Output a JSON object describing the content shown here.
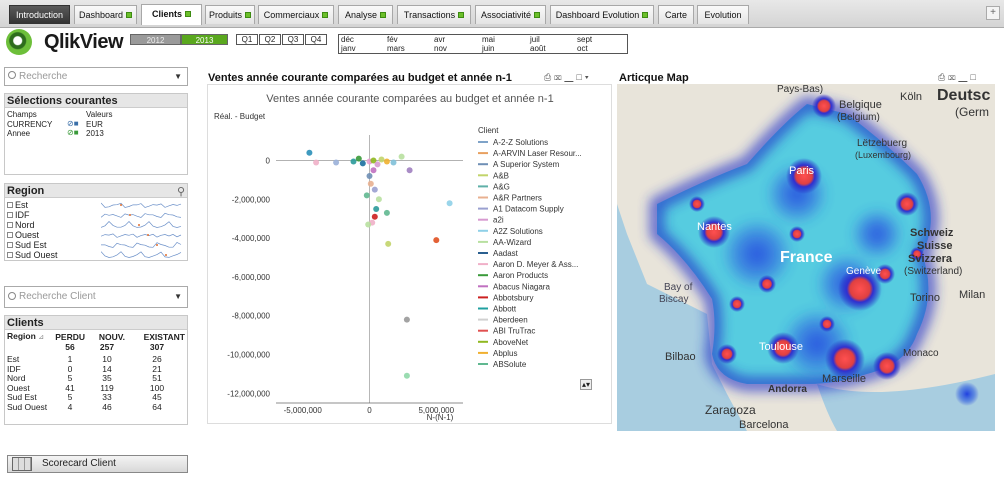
{
  "tabs": [
    {
      "label": "Introduction",
      "state": "dark"
    },
    {
      "label": "Dashboard",
      "tick": true
    },
    {
      "label": "Clients",
      "tick": true,
      "state": "active"
    },
    {
      "label": "Produits",
      "tick": true
    },
    {
      "label": "Commerciaux",
      "tick": true
    },
    {
      "label": "Analyse",
      "tick": true
    },
    {
      "label": "Transactions",
      "tick": true
    },
    {
      "label": "Associativité",
      "tick": true
    },
    {
      "label": "Dashboard Evolution",
      "tick": true
    },
    {
      "label": "Carte"
    },
    {
      "label": "Evolution"
    }
  ],
  "tab_add": "+",
  "logo": {
    "name": "QlikView"
  },
  "years": [
    {
      "label": "2012",
      "selected": false
    },
    {
      "label": "2013",
      "selected": true
    }
  ],
  "quarters": [
    "Q1",
    "Q2",
    "Q3",
    "Q4"
  ],
  "months": [
    [
      "déc",
      "janv"
    ],
    [
      "fév",
      "mars"
    ],
    [
      "avr",
      "nov"
    ],
    [
      "mai",
      "juin"
    ],
    [
      "juil",
      "août"
    ],
    [
      "sept",
      "oct"
    ]
  ],
  "search": {
    "placeholder": "Recherche"
  },
  "selections": {
    "title": "Sélections courantes",
    "col_field": "Champs",
    "col_value": "Valeurs",
    "rows": [
      {
        "field": "CURRENCY",
        "value": "EUR"
      },
      {
        "field": "Annee",
        "value": "2013"
      }
    ]
  },
  "region_box": {
    "title": "Region",
    "items": [
      "Est",
      "IDF",
      "Nord",
      "Ouest",
      "Sud Est",
      "Sud Ouest"
    ]
  },
  "client_search": {
    "placeholder": "Recherche Client"
  },
  "clients_table": {
    "title": "Clients",
    "headers": [
      "Region",
      "PERDU",
      "NOUV.",
      "EXISTANT"
    ],
    "totals": [
      "",
      "56",
      "257",
      "307"
    ],
    "rows": [
      [
        "Est",
        "1",
        "10",
        "26"
      ],
      [
        "IDF",
        "0",
        "14",
        "21"
      ],
      [
        "Nord",
        "5",
        "35",
        "51"
      ],
      [
        "Ouest",
        "41",
        "119",
        "100"
      ],
      [
        "Sud Est",
        "5",
        "33",
        "45"
      ],
      [
        "Sud Ouest",
        "4",
        "46",
        "64"
      ]
    ]
  },
  "chart_panel": {
    "title": "Ventes année courante comparées au budget et année n-1"
  },
  "chart_data": {
    "type": "scatter",
    "title": "Ventes année courante comparées au budget et année n-1",
    "ylabel": "Réal. - Budget",
    "xlabel": "N-(N-1)",
    "xlim": [
      -7000000,
      7000000
    ],
    "ylim": [
      -12500000,
      800000
    ],
    "xticks": [
      -5000000,
      0,
      5000000
    ],
    "xtick_labels": [
      "-5,000,000",
      "0",
      "5,000,000"
    ],
    "yticks": [
      0,
      -2000000,
      -4000000,
      -6000000,
      -8000000,
      -10000000,
      -12000000
    ],
    "ytick_labels": [
      "0",
      "-2,000,000",
      "-4,000,000",
      "-6,000,000",
      "-8,000,000",
      "-10,000,000",
      "-12,000,000"
    ],
    "legend_title": "Client",
    "legend_position": "right",
    "series": [
      {
        "name": "A-2-Z Solutions",
        "color": "#7fa3c8"
      },
      {
        "name": "A-ARVIN Laser Resour...",
        "color": "#e8a060"
      },
      {
        "name": "A Superior System",
        "color": "#6f8fb5"
      },
      {
        "name": "A&B",
        "color": "#c2d46a"
      },
      {
        "name": "A&G",
        "color": "#5fb0a8"
      },
      {
        "name": "A&R Partners",
        "color": "#e8b090"
      },
      {
        "name": "A1 Datacom Supply",
        "color": "#9aa0d0"
      },
      {
        "name": "a2i",
        "color": "#d79ad0"
      },
      {
        "name": "A2Z Solutions",
        "color": "#8fd0e8"
      },
      {
        "name": "AA-Wizard",
        "color": "#b8e0a0"
      },
      {
        "name": "Aadast",
        "color": "#2a5f8f"
      },
      {
        "name": "Aaron D. Meyer & Ass...",
        "color": "#f0b0c8"
      },
      {
        "name": "Aaron Products",
        "color": "#3a9a3a"
      },
      {
        "name": "Abacus Niagara",
        "color": "#c070c0"
      },
      {
        "name": "Abbotsbury",
        "color": "#cc2020"
      },
      {
        "name": "Abbott",
        "color": "#20a0a0"
      },
      {
        "name": "Aberdeen",
        "color": "#d0d0d0"
      },
      {
        "name": "ABI TruTrac",
        "color": "#e05050"
      },
      {
        "name": "AboveNet",
        "color": "#8fb820"
      },
      {
        "name": "Abplus",
        "color": "#f0b030"
      },
      {
        "name": "ABSolute",
        "color": "#60b890"
      }
    ],
    "points": [
      {
        "x": -4500000,
        "y": 400000,
        "c": "#2a8fb8"
      },
      {
        "x": -4000000,
        "y": -100000,
        "c": "#f0b0c8"
      },
      {
        "x": -2500000,
        "y": -100000,
        "c": "#9ab0d8"
      },
      {
        "x": -1200000,
        "y": -50000,
        "c": "#2a9a9a"
      },
      {
        "x": -800000,
        "y": 100000,
        "c": "#3a9a3a"
      },
      {
        "x": -500000,
        "y": -150000,
        "c": "#1a6f9f"
      },
      {
        "x": 0,
        "y": -50000,
        "c": "#e8a0d0"
      },
      {
        "x": 300000,
        "y": 0,
        "c": "#8fb820"
      },
      {
        "x": 600000,
        "y": -200000,
        "c": "#d79ad0"
      },
      {
        "x": 900000,
        "y": 50000,
        "c": "#c2d46a"
      },
      {
        "x": 1300000,
        "y": -50000,
        "c": "#f0b030"
      },
      {
        "x": 1800000,
        "y": -100000,
        "c": "#7fc0d8"
      },
      {
        "x": 2400000,
        "y": 200000,
        "c": "#b8e0a0"
      },
      {
        "x": 300000,
        "y": -500000,
        "c": "#c070c0"
      },
      {
        "x": 0,
        "y": -800000,
        "c": "#6f8fb5"
      },
      {
        "x": 100000,
        "y": -1200000,
        "c": "#e8b090"
      },
      {
        "x": 400000,
        "y": -1500000,
        "c": "#9aa0d0"
      },
      {
        "x": 3000000,
        "y": -500000,
        "c": "#a080c0"
      },
      {
        "x": 700000,
        "y": -2000000,
        "c": "#b8e0a0"
      },
      {
        "x": -200000,
        "y": -1800000,
        "c": "#60b890"
      },
      {
        "x": 500000,
        "y": -2500000,
        "c": "#2a9a9a"
      },
      {
        "x": 400000,
        "y": -2900000,
        "c": "#cc2020"
      },
      {
        "x": 200000,
        "y": -3200000,
        "c": "#f0b0c8"
      },
      {
        "x": 1300000,
        "y": -2700000,
        "c": "#60b890"
      },
      {
        "x": 1400000,
        "y": -4300000,
        "c": "#c2d46a"
      },
      {
        "x": -100000,
        "y": -3300000,
        "c": "#b8e0a0"
      },
      {
        "x": 6000000,
        "y": -2200000,
        "c": "#8fd0e8"
      },
      {
        "x": 5000000,
        "y": -4100000,
        "c": "#e05020"
      },
      {
        "x": 2800000,
        "y": -8200000,
        "c": "#999999"
      },
      {
        "x": 2800000,
        "y": -11100000,
        "c": "#8fd8a8"
      }
    ]
  },
  "map_panel": {
    "title": "Articque Map",
    "labels": {
      "pays_bas": "Pays-Bas)",
      "belgique": "Belgique",
      "belgium": "(Belgium)",
      "koln": "Köln",
      "deutsch": "Deutsc",
      "germ": "(Germ",
      "letzebuerg": "Lëtzebuerg",
      "luxembourg": "(Luxembourg)",
      "paris": "Paris",
      "nantes": "Nantes",
      "france": "France",
      "schweiz": "Schweiz",
      "suisse": "Suisse",
      "svizzera": "Svizzera",
      "switzerland": "(Switzerland)",
      "geneve": "Genève",
      "bay": "Bay of",
      "biscay": "Biscay",
      "torino": "Torino",
      "milan": "Milan",
      "toulouse": "Toulouse",
      "bilbao": "Bilbao",
      "monaco": "Monaco",
      "andorra": "Andorra",
      "marseille": "Marseille",
      "zaragoza": "Zaragoza",
      "barcelona": "Barcelona"
    }
  },
  "scorecard": {
    "label": "Scorecard Client"
  }
}
